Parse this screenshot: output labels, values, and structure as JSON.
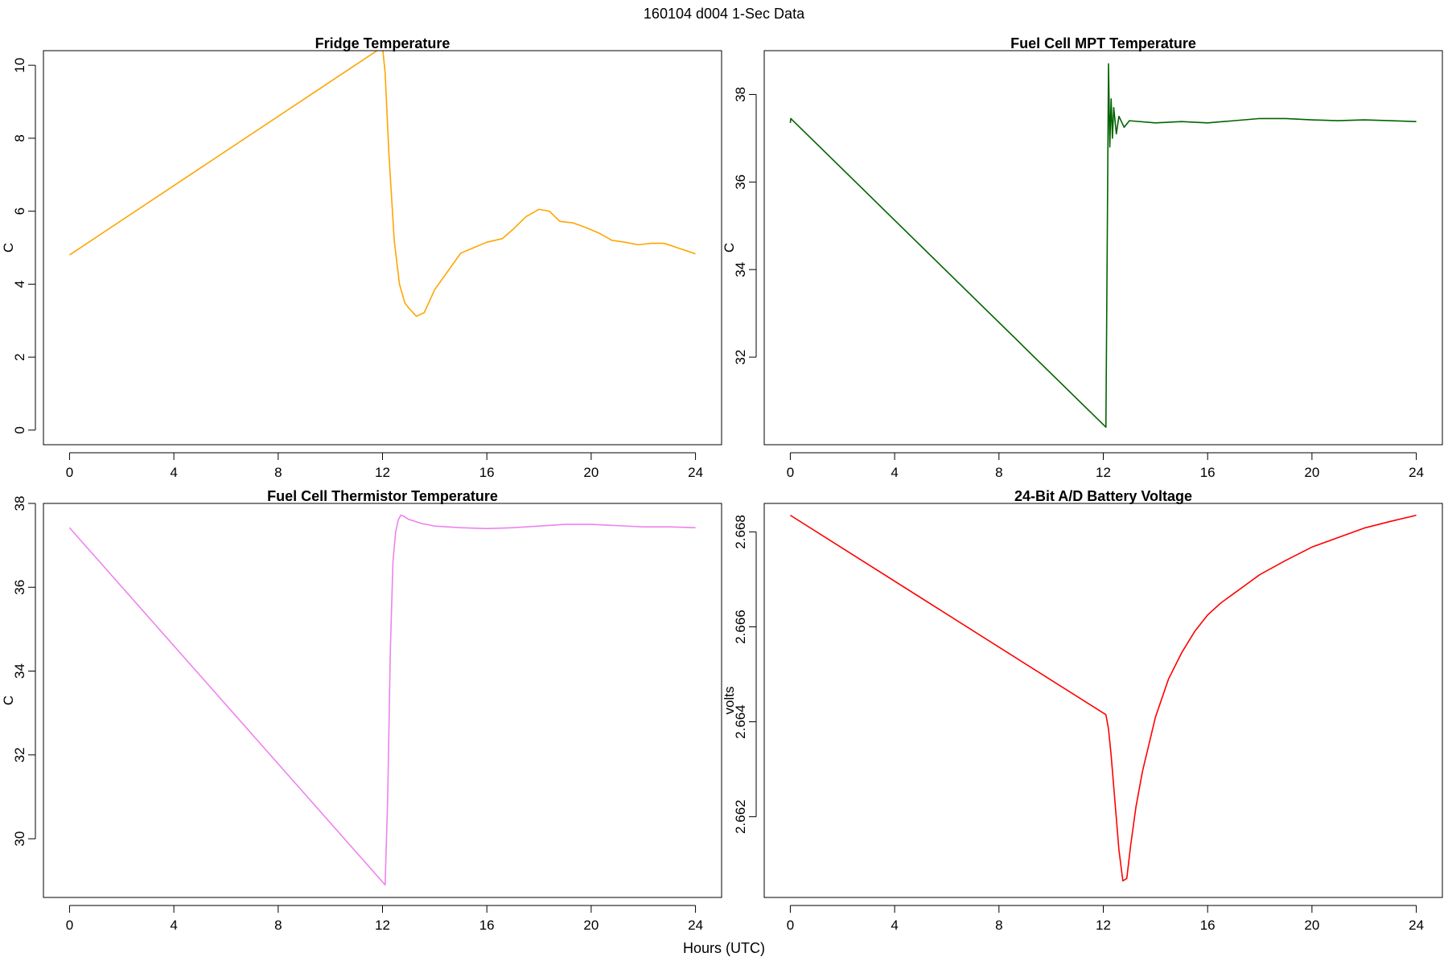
{
  "figure": {
    "title": "160104   d004   1-Sec Data",
    "xlabel": "Hours (UTC)"
  },
  "chart_data": [
    {
      "type": "line",
      "title": "Fridge Temperature",
      "xlabel": "",
      "ylabel": "C",
      "xlim": [
        -1,
        25
      ],
      "ylim": [
        -0.4,
        10.4
      ],
      "xticks": [
        0,
        4,
        8,
        12,
        16,
        20,
        24
      ],
      "yticks": [
        0,
        2,
        4,
        6,
        8,
        10
      ],
      "grid": false,
      "series": [
        {
          "color": "#FFA500",
          "x": [
            0,
            12.0,
            12.1,
            12.25,
            12.45,
            12.65,
            12.85,
            13.0,
            13.3,
            13.6,
            14.0,
            14.5,
            15.0,
            15.5,
            16.0,
            16.6,
            17.0,
            17.5,
            18.0,
            18.4,
            18.8,
            19.3,
            19.8,
            20.3,
            20.8,
            21.3,
            21.8,
            22.3,
            22.8,
            23.3,
            23.8,
            24.0
          ],
          "y": [
            4.8,
            10.5,
            9.8,
            7.5,
            5.2,
            4.0,
            3.5,
            3.35,
            3.12,
            3.22,
            3.85,
            4.35,
            4.85,
            5.0,
            5.15,
            5.25,
            5.5,
            5.85,
            6.05,
            6.0,
            5.72,
            5.68,
            5.55,
            5.4,
            5.2,
            5.15,
            5.08,
            5.12,
            5.12,
            5.0,
            4.88,
            4.83
          ]
        }
      ]
    },
    {
      "type": "line",
      "title": "Fuel Cell MPT Temperature",
      "xlabel": "",
      "ylabel": "C",
      "xlim": [
        -1,
        25
      ],
      "ylim": [
        30.0,
        39.0
      ],
      "xticks": [
        0,
        4,
        8,
        12,
        16,
        20,
        24
      ],
      "yticks": [
        32,
        34,
        36,
        38
      ],
      "grid": false,
      "series": [
        {
          "color": "#006400",
          "x": [
            0,
            0.02,
            12.1,
            12.15,
            12.2,
            12.25,
            12.3,
            12.35,
            12.4,
            12.5,
            12.6,
            12.8,
            13.0,
            14.0,
            15.0,
            16.0,
            17.0,
            18.0,
            19.0,
            20.0,
            21.0,
            22.0,
            23.0,
            24.0
          ],
          "y": [
            37.35,
            37.45,
            30.4,
            34.5,
            38.7,
            36.8,
            37.9,
            37.0,
            37.7,
            37.1,
            37.5,
            37.25,
            37.4,
            37.35,
            37.38,
            37.35,
            37.4,
            37.45,
            37.45,
            37.42,
            37.4,
            37.42,
            37.4,
            37.38
          ]
        }
      ]
    },
    {
      "type": "line",
      "title": "Fuel Cell Thermistor Temperature",
      "xlabel": "",
      "ylabel": "C",
      "xlim": [
        -1,
        25
      ],
      "ylim": [
        28.6,
        38.0
      ],
      "xticks": [
        0,
        4,
        8,
        12,
        16,
        20,
        24
      ],
      "yticks": [
        30,
        32,
        34,
        36,
        38
      ],
      "grid": false,
      "series": [
        {
          "color": "#EE82EE",
          "x": [
            0,
            12.1,
            12.2,
            12.3,
            12.4,
            12.5,
            12.6,
            12.7,
            12.8,
            13.0,
            13.5,
            14.0,
            15.0,
            16.0,
            17.0,
            18.0,
            19.0,
            20.0,
            21.0,
            22.0,
            23.0,
            24.0
          ],
          "y": [
            37.42,
            28.9,
            31.0,
            34.5,
            36.6,
            37.3,
            37.6,
            37.72,
            37.7,
            37.62,
            37.52,
            37.46,
            37.42,
            37.4,
            37.42,
            37.46,
            37.5,
            37.5,
            37.47,
            37.44,
            37.44,
            37.42
          ]
        }
      ]
    },
    {
      "type": "line",
      "title": "24-Bit A/D Battery Voltage",
      "xlabel": "",
      "ylabel": "volts",
      "xlim": [
        -1,
        25
      ],
      "ylim": [
        2.6603,
        2.6686
      ],
      "xticks": [
        0,
        4,
        8,
        12,
        16,
        20,
        24
      ],
      "yticks": [
        2.662,
        2.664,
        2.666,
        2.668
      ],
      "yticklabels": [
        "2.662",
        "2.664",
        "2.666",
        "2.668"
      ],
      "grid": false,
      "series": [
        {
          "color": "#FF0000",
          "x": [
            0,
            12.1,
            12.2,
            12.3,
            12.45,
            12.6,
            12.75,
            12.9,
            13.05,
            13.25,
            13.5,
            14.0,
            14.5,
            15.0,
            15.5,
            16.0,
            16.5,
            17.0,
            17.5,
            18.0,
            19.0,
            20.0,
            21.0,
            22.0,
            23.0,
            24.0
          ],
          "y": [
            2.66835,
            2.66415,
            2.66385,
            2.6633,
            2.6623,
            2.6613,
            2.66065,
            2.6607,
            2.6614,
            2.6622,
            2.66295,
            2.6641,
            2.6649,
            2.66545,
            2.6659,
            2.66625,
            2.6665,
            2.6667,
            2.6669,
            2.6671,
            2.6674,
            2.66768,
            2.66788,
            2.66808,
            2.66822,
            2.66835
          ]
        }
      ]
    }
  ]
}
